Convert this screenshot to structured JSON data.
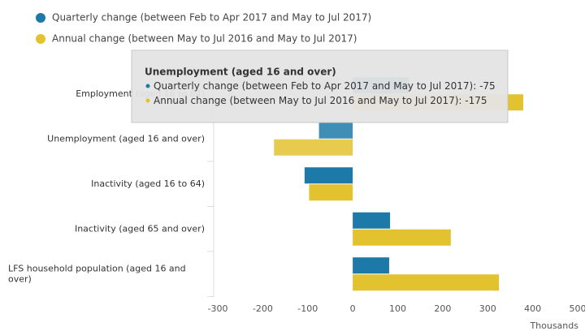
{
  "chart_data": {
    "type": "bar",
    "orientation": "horizontal",
    "categories": [
      "Employment (aged 16 to 64)",
      "Unemployment (aged 16 and over)",
      "Inactivity (aged 16 to 64)",
      "Inactivity (aged 65 and over)",
      "LFS household population (aged 16 and over)"
    ],
    "series": [
      {
        "name": "Quarterly change (between Feb to Apr 2017 and May to Jul 2017)",
        "color": "#1d7aa8",
        "values": [
          125,
          -75,
          -107,
          83,
          81
        ]
      },
      {
        "name": "Annual change (between May to Jul 2016 and May to Jul 2017)",
        "color": "#e3c22f",
        "values": [
          379,
          -175,
          -97,
          218,
          325
        ]
      }
    ],
    "xlim": [
      -300,
      500
    ],
    "xticks": [
      -300,
      -200,
      -100,
      0,
      100,
      200,
      300,
      400,
      500
    ],
    "x_label": "Thousands",
    "grid": false,
    "legend": "top-left"
  }
}
